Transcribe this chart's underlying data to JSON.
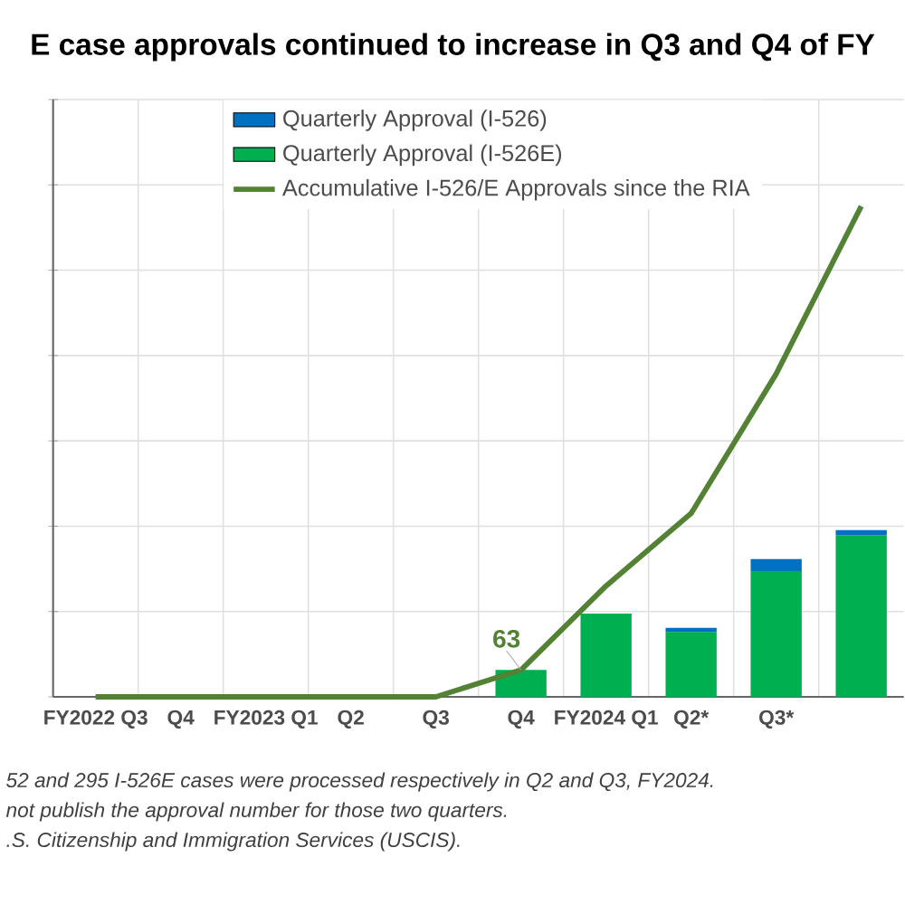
{
  "chart_data": {
    "type": "bar",
    "stacked": true,
    "title": "E case approvals continued to increase in Q3 and Q4 of FY",
    "categories": [
      "FY2022 Q3",
      "Q4",
      "FY2023 Q1",
      "Q2",
      "Q3",
      "Q4",
      "FY2024 Q1",
      "Q2*",
      "Q3*",
      null
    ],
    "series": [
      {
        "name": "Quarterly Approval (I-526E)",
        "color": "#00b050",
        "values": [
          0,
          0,
          0,
          0,
          0,
          63,
          195,
          152,
          295,
          379
        ]
      },
      {
        "name": "Quarterly Approval (I-526)",
        "color": "#0070c0",
        "values": [
          0,
          0,
          0,
          0,
          0,
          0,
          0,
          10,
          28,
          12
        ]
      },
      {
        "name": "Accumulative I-526/E Approvals since the RIA",
        "type": "line",
        "color": "#548235",
        "values": [
          0,
          0,
          0,
          0,
          0,
          63,
          260,
          430,
          757,
          1150
        ],
        "value_labels": [
          null,
          null,
          null,
          null,
          null,
          "63",
          null,
          null,
          null,
          null
        ]
      }
    ],
    "ylim": [
      0,
      1400
    ],
    "yticks": [
      {
        "value": 0,
        "label": null
      },
      {
        "value": 200,
        "label": null
      },
      {
        "value": 400,
        "label": null
      },
      {
        "value": 600,
        "label": null
      },
      {
        "value": 800,
        "label": null
      },
      {
        "value": 1000,
        "label": null
      },
      {
        "value": 1200,
        "label": null
      },
      {
        "value": 1400,
        "label": null
      }
    ],
    "grid": true,
    "legend": "top left",
    "annotations": [
      "52 and 295 I-526E cases were processed respectively in Q2 and Q3, FY2024.",
      "not publish the approval number for those two quarters.",
      ".S. Citizenship and Immigration Services (USCIS)."
    ]
  }
}
